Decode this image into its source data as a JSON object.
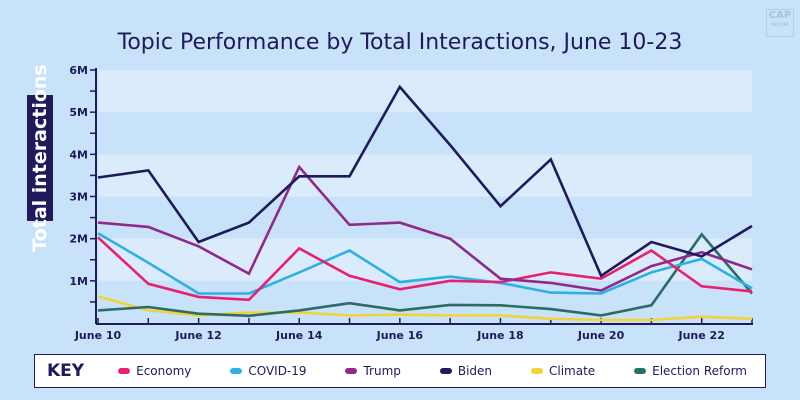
{
  "title": "Topic Performance by Total Interactions, June 10-23",
  "logo": {
    "main": "CAP",
    "sub": "ACTION"
  },
  "chart_data": {
    "type": "line",
    "title": "Topic Performance by Total Interactions, June 10-23",
    "xlabel": "",
    "ylabel": "Total interactions",
    "x": [
      "June 10",
      "June 11",
      "June 12",
      "June 13",
      "June 14",
      "June 15",
      "June 16",
      "June 17",
      "June 18",
      "June 19",
      "June 20",
      "June 21",
      "June 22",
      "June 23"
    ],
    "x_tick_labels": [
      "June 10",
      "June 12",
      "June 14",
      "June 16",
      "June 18",
      "June 20",
      "June 22"
    ],
    "ylim": [
      0,
      6000000
    ],
    "y_ticks": [
      1000000,
      2000000,
      3000000,
      4000000,
      5000000,
      6000000
    ],
    "y_tick_labels": [
      "1M",
      "2M",
      "3M",
      "4M",
      "5M",
      "6M"
    ],
    "grid": "alternating horizontal bands",
    "legend_position": "bottom",
    "legend_title": "KEY",
    "series": [
      {
        "name": "Economy",
        "color": "#e8206f",
        "values": [
          2030000,
          930000,
          620000,
          550000,
          1770000,
          1120000,
          800000,
          1000000,
          970000,
          1200000,
          1050000,
          1720000,
          870000,
          750000
        ]
      },
      {
        "name": "COVID-19",
        "color": "#2fb0e3",
        "values": [
          2130000,
          1430000,
          700000,
          700000,
          1200000,
          1720000,
          970000,
          1100000,
          950000,
          720000,
          700000,
          1200000,
          1520000,
          820000
        ]
      },
      {
        "name": "Trump",
        "color": "#8e2a8a",
        "values": [
          2380000,
          2280000,
          1820000,
          1170000,
          3700000,
          2330000,
          2380000,
          2000000,
          1050000,
          950000,
          770000,
          1350000,
          1680000,
          1270000
        ]
      },
      {
        "name": "Biden",
        "color": "#1e1a5c",
        "values": [
          3450000,
          3620000,
          1920000,
          2380000,
          3480000,
          3480000,
          5600000,
          4220000,
          2770000,
          3880000,
          1120000,
          1920000,
          1580000,
          2300000
        ]
      },
      {
        "name": "Climate",
        "color": "#f2d23a",
        "values": [
          630000,
          300000,
          180000,
          250000,
          250000,
          180000,
          200000,
          180000,
          180000,
          100000,
          70000,
          70000,
          150000,
          100000
        ]
      },
      {
        "name": "Election Reform",
        "color": "#2e6b64",
        "values": [
          300000,
          380000,
          220000,
          170000,
          300000,
          470000,
          300000,
          430000,
          420000,
          330000,
          180000,
          420000,
          2100000,
          700000
        ]
      }
    ]
  }
}
